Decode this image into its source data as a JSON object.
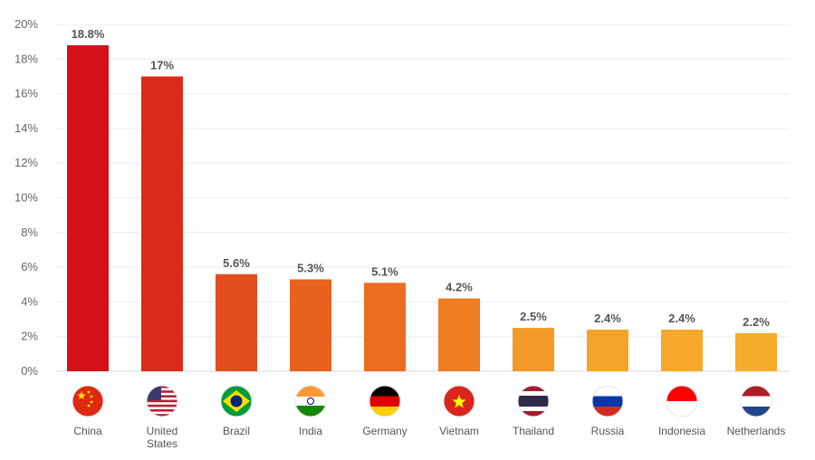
{
  "chart_data": {
    "type": "bar",
    "categories": [
      "China",
      "United States",
      "Brazil",
      "India",
      "Germany",
      "Vietnam",
      "Thailand",
      "Russia",
      "Indonesia",
      "Netherlands"
    ],
    "category_lines": [
      [
        "China"
      ],
      [
        "United",
        "States"
      ],
      [
        "Brazil"
      ],
      [
        "India"
      ],
      [
        "Germany"
      ],
      [
        "Vietnam"
      ],
      [
        "Thailand"
      ],
      [
        "Russia"
      ],
      [
        "Indonesia"
      ],
      [
        "Netherlands"
      ]
    ],
    "values": [
      18.8,
      17,
      5.6,
      5.3,
      5.1,
      4.2,
      2.5,
      2.4,
      2.4,
      2.2
    ],
    "value_labels": [
      "18.8%",
      "17%",
      "5.6%",
      "5.3%",
      "5.1%",
      "4.2%",
      "2.5%",
      "2.4%",
      "2.4%",
      "2.2%"
    ],
    "bar_colors": [
      "#d41118",
      "#dc2a1a",
      "#e24d1e",
      "#e8611f",
      "#ec6d20",
      "#ef7d22",
      "#f39a28",
      "#f5a42a",
      "#f6a82b",
      "#f7ad2c"
    ],
    "flag_icons": [
      "flag-china-icon",
      "flag-united-states-icon",
      "flag-brazil-icon",
      "flag-india-icon",
      "flag-germany-icon",
      "flag-vietnam-icon",
      "flag-thailand-icon",
      "flag-russia-icon",
      "flag-indonesia-icon",
      "flag-netherlands-icon"
    ],
    "y_ticks": [
      "0%",
      "2%",
      "4%",
      "6%",
      "8%",
      "10%",
      "12%",
      "14%",
      "16%",
      "18%",
      "20%"
    ],
    "ylim": [
      0,
      20
    ],
    "grid": true,
    "title": "",
    "xlabel": "",
    "ylabel": ""
  }
}
